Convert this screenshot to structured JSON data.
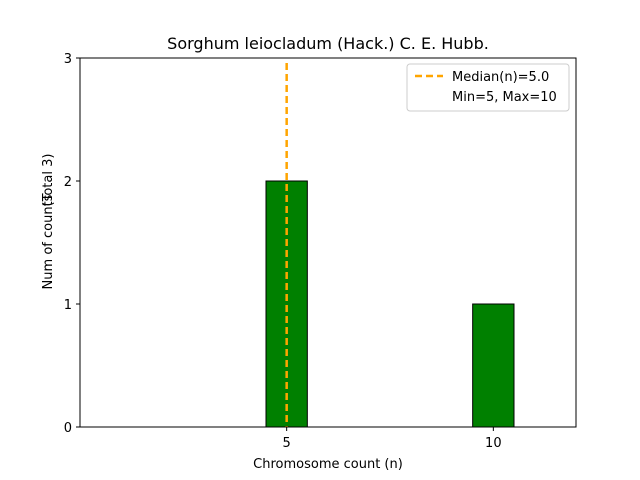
{
  "chart_data": {
    "type": "bar",
    "title": "Sorghum leiocladum (Hack.) C. E. Hubb.",
    "xlabel": "Chromosome count (n)",
    "ylabel": "Num of counts",
    "ylabel_total": "(Total 3)",
    "x": [
      5,
      10
    ],
    "values": [
      2,
      1
    ],
    "bar_width": 1,
    "xlim": [
      0,
      12
    ],
    "ylim": [
      0,
      3
    ],
    "xticks": [
      5,
      10
    ],
    "yticks": [
      0,
      1,
      2,
      3
    ],
    "grid": false,
    "median_line": {
      "x": 5.0,
      "label": "Median(n)=5.0"
    },
    "legend": {
      "placement": "top-right",
      "entries": [
        "Median(n)=5.0",
        "Min=5, Max=10"
      ]
    },
    "colors": {
      "bar_fill": "#008000",
      "bar_edge": "#000000",
      "median": "#FFA500"
    }
  }
}
